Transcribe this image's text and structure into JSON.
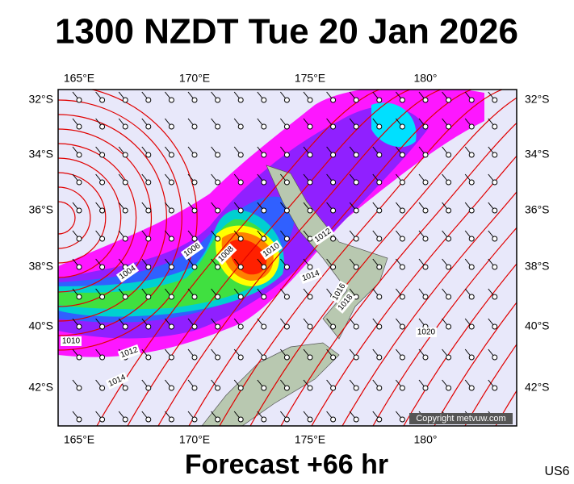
{
  "header": {
    "title": "1300 NZDT Tue 20 Jan 2026"
  },
  "axes": {
    "top": [
      "165°E",
      "170°E",
      "175°E",
      "180°"
    ],
    "bottom": [
      "165°E",
      "170°E",
      "175°E",
      "180°"
    ],
    "left": [
      "32°S",
      "34°S",
      "36°S",
      "38°S",
      "40°S",
      "42°S"
    ],
    "right": [
      "32°S",
      "34°S",
      "36°S",
      "38°S",
      "40°S",
      "42°S"
    ]
  },
  "isobar_labels": [
    "1004",
    "1006",
    "1008",
    "1010",
    "1012",
    "1014",
    "1016",
    "1018",
    "1020",
    "1010",
    "1012",
    "1014"
  ],
  "copyright": "Copyright metvuw.com",
  "footer": {
    "forecast": "Forecast +66 hr",
    "code": "US6"
  }
}
